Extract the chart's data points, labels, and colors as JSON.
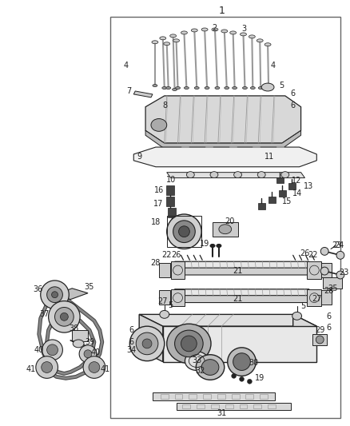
{
  "title": "1",
  "title_fontsize": 9,
  "bg_color": "#ffffff",
  "border_color": "#666666",
  "text_color": "#222222",
  "label_fontsize": 7,
  "fig_width": 4.38,
  "fig_height": 5.33,
  "dpi": 100
}
